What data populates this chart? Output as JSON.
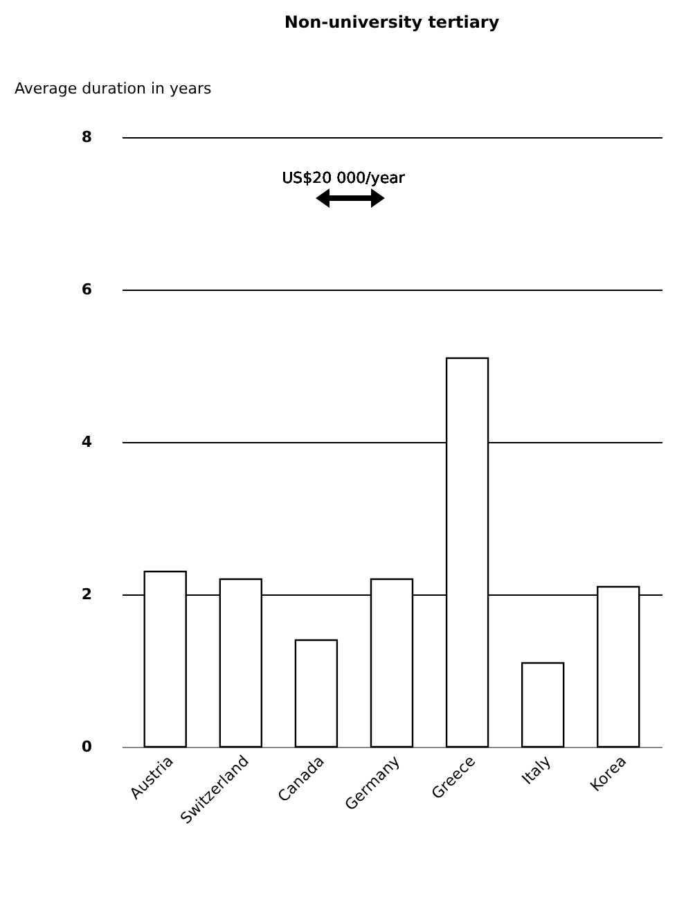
{
  "chart_data": {
    "type": "bar",
    "title": "Non-university tertiary",
    "ylabel": "Average duration in years",
    "categories": [
      "Austria",
      "Switzerland",
      "Canada",
      "Germany",
      "Greece",
      "Italy",
      "Korea"
    ],
    "values": [
      2.3,
      2.2,
      1.4,
      2.2,
      5.1,
      1.1,
      2.1
    ],
    "color": "#ffffff",
    "ylim": [
      0,
      8
    ],
    "yticks": [
      0,
      2,
      4,
      6,
      8
    ],
    "grid": "y",
    "annotations": [
      "US$20 000/year"
    ]
  }
}
